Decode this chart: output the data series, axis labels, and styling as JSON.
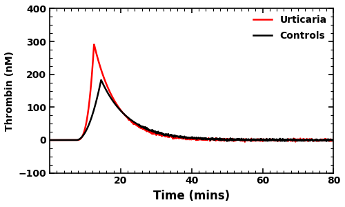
{
  "title": "",
  "xlabel": "Time (mins)",
  "ylabel": "Thrombin (nM)",
  "xlim": [
    0,
    80
  ],
  "ylim": [
    -100,
    400
  ],
  "xticks": [
    20,
    40,
    60,
    80
  ],
  "yticks": [
    -100,
    0,
    100,
    200,
    300,
    400
  ],
  "urticaria_color": "#FF0000",
  "controls_color": "#000000",
  "urticaria_label": "Urticaria",
  "controls_label": "Controls",
  "line_width": 1.8,
  "legend_loc": "upper right",
  "background_color": "#ffffff",
  "urticaria_peak_x": 12.5,
  "urticaria_peak_y": 292,
  "controls_peak_x": 14.5,
  "controls_peak_y": 183,
  "lag_time_urticaria": 7.5,
  "lag_time_controls": 7.5
}
